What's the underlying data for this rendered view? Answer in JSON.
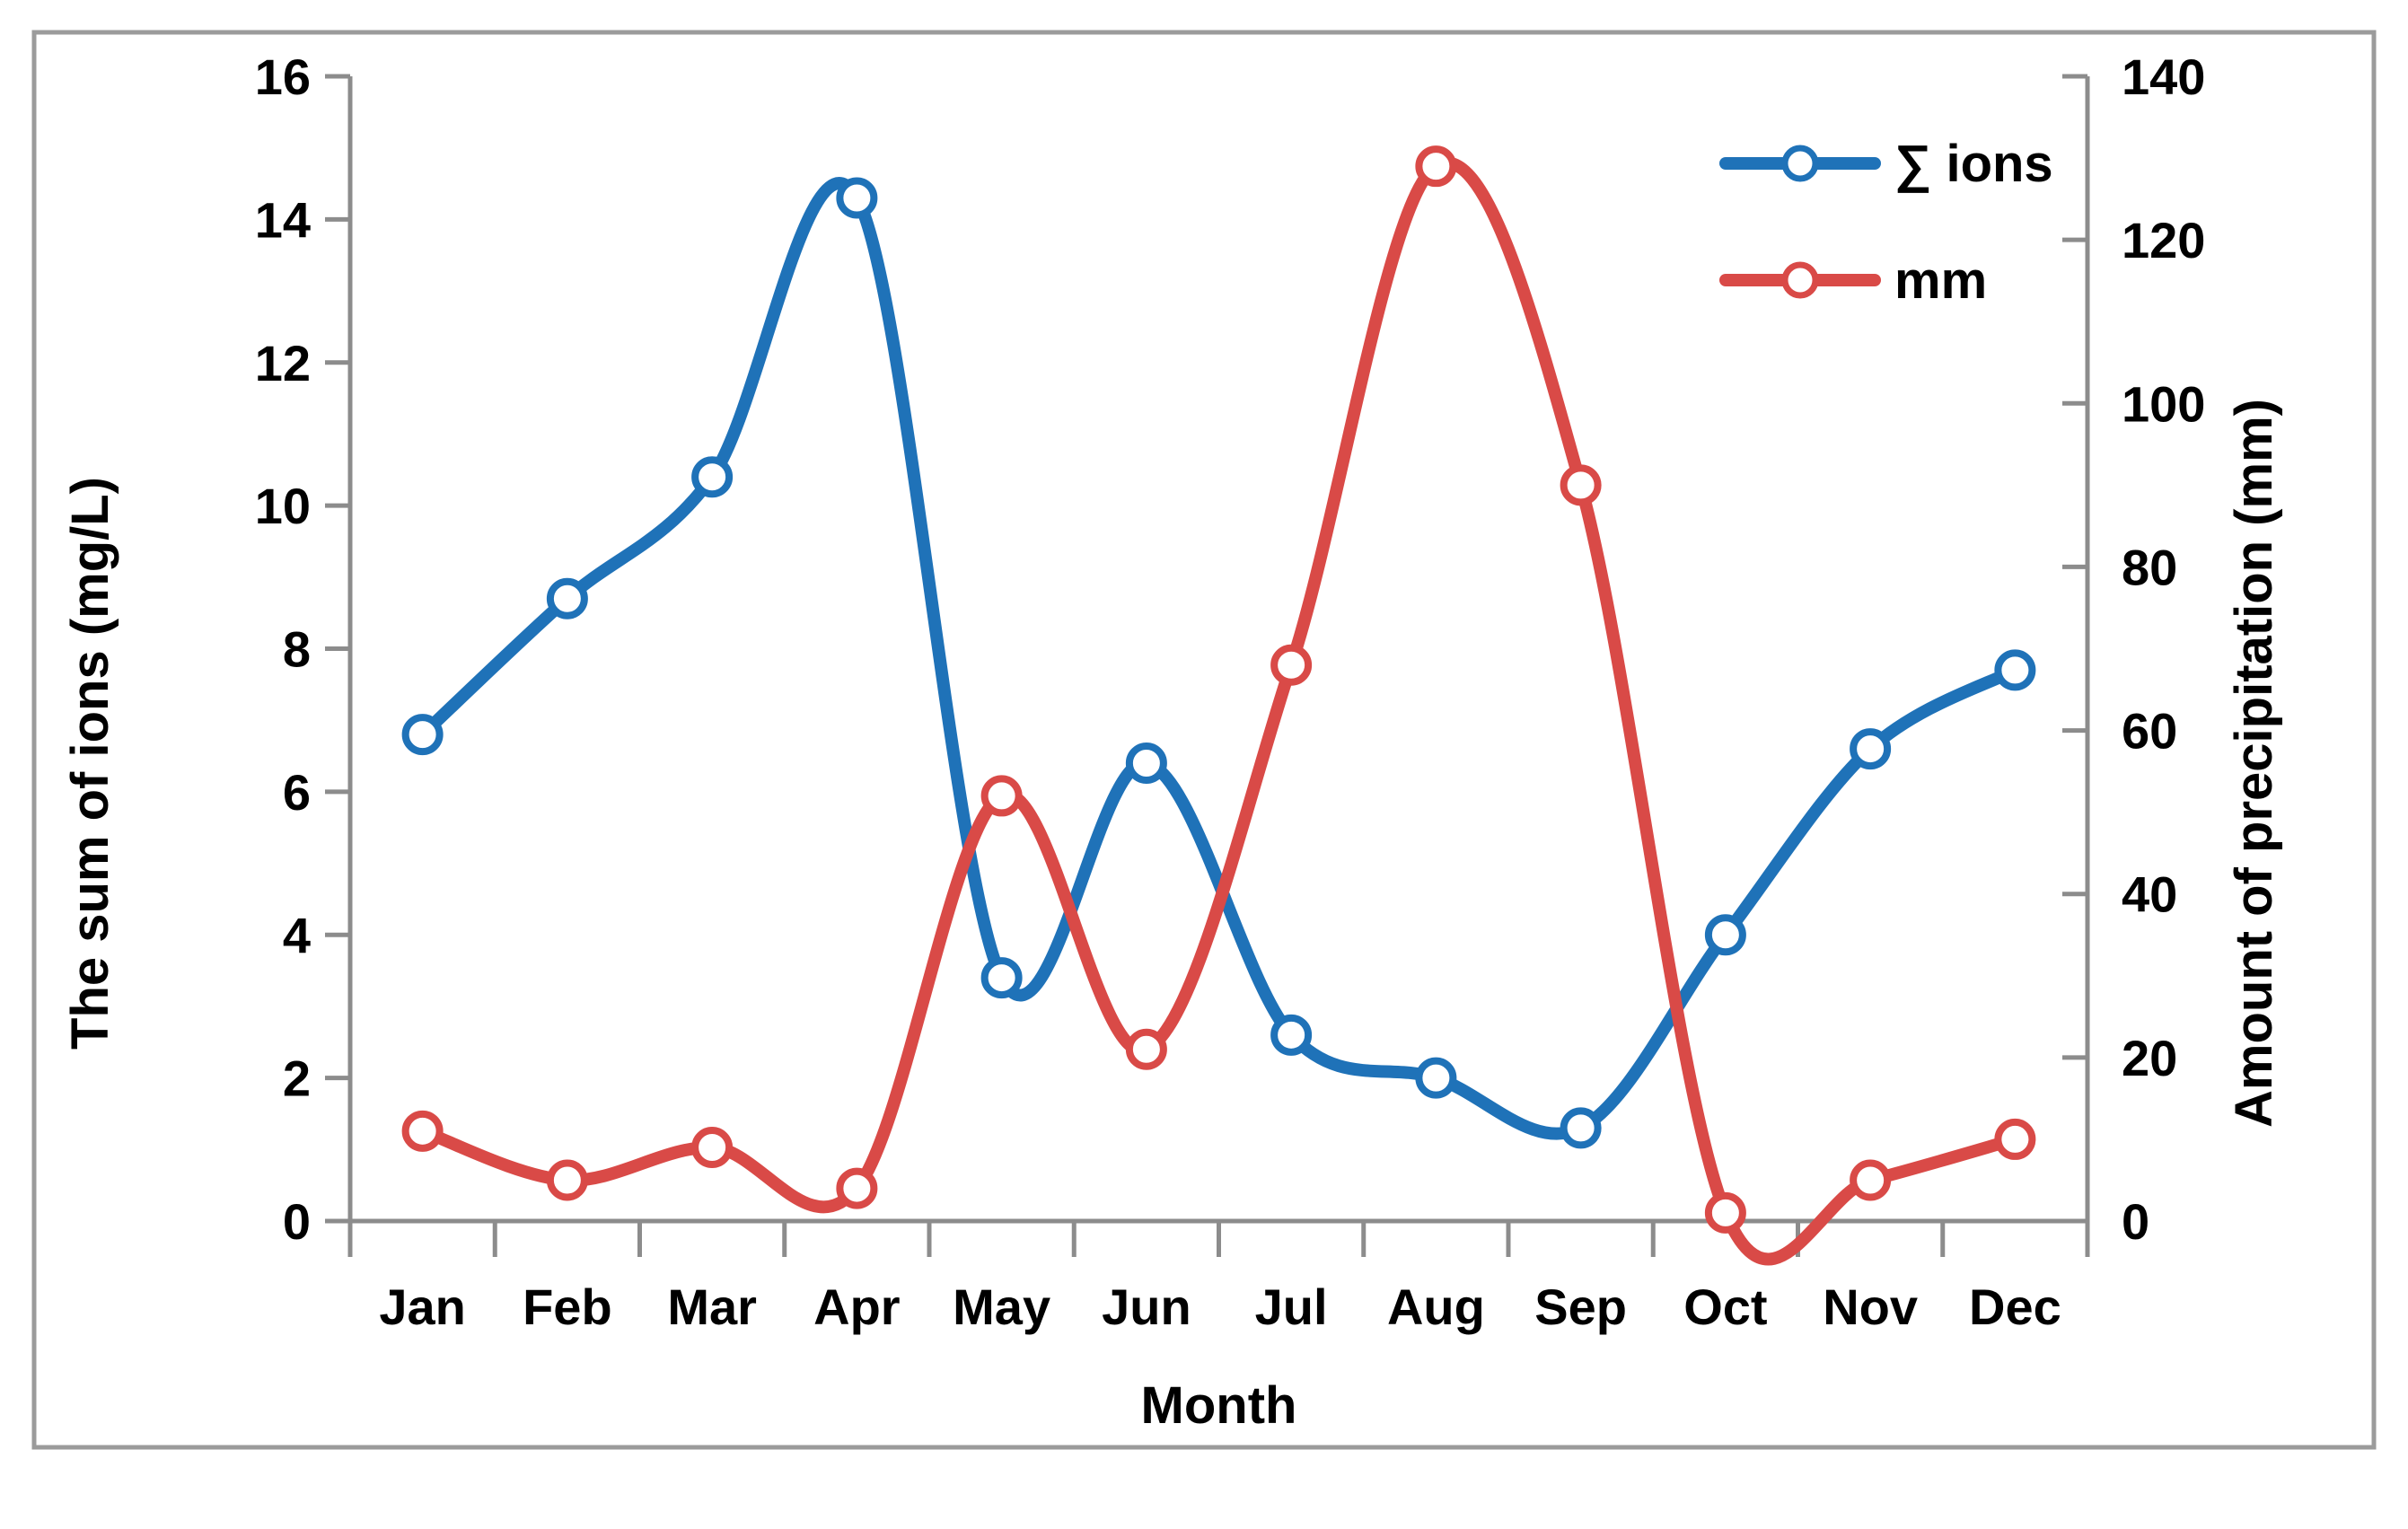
{
  "figure": {
    "background": "#ffffff",
    "border_color": "#9b9b9b",
    "axis_color": "#8c8c8c"
  },
  "chart_data": {
    "type": "line",
    "categories": [
      "Jan",
      "Feb",
      "Mar",
      "Apr",
      "May",
      "Jun",
      "Jul",
      "Aug",
      "Sep",
      "Oct",
      "Nov",
      "Dec"
    ],
    "series": [
      {
        "name": "∑ ions",
        "axis": "left",
        "color": "#1f72b8",
        "marker": "open-circle",
        "values": [
          6.8,
          8.7,
          10.4,
          14.3,
          3.4,
          6.4,
          2.6,
          2.0,
          1.3,
          4.0,
          6.6,
          7.7
        ]
      },
      {
        "name": "mm",
        "axis": "right",
        "color": "#d94a47",
        "marker": "open-circle",
        "values": [
          11,
          5,
          9,
          4,
          52,
          21,
          68,
          129,
          90,
          1,
          5,
          10
        ]
      }
    ],
    "title": "",
    "xlabel": "Month",
    "ylabel_left": "The sum of ions (mg/L)",
    "ylabel_right": "Amount of precipitation (mm)",
    "ylim_left": [
      0,
      16
    ],
    "ylim_right": [
      0,
      140
    ],
    "yticks_left": [
      0,
      2,
      4,
      6,
      8,
      10,
      12,
      14,
      16
    ],
    "yticks_right": [
      0,
      20,
      40,
      60,
      80,
      100,
      120,
      140
    ],
    "grid": false,
    "smooth": true,
    "legend_position": "top-right"
  },
  "legend": {
    "items": [
      {
        "label": "∑ ions"
      },
      {
        "label": "mm"
      }
    ]
  }
}
